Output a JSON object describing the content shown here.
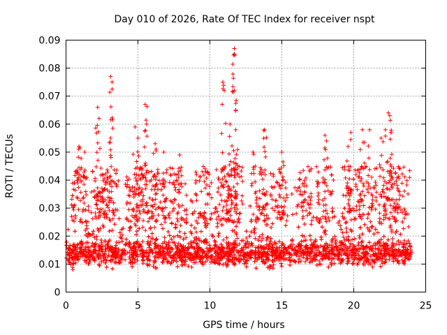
{
  "chart_data": {
    "type": "scatter",
    "title": "Day 010 of 2026, Rate Of TEC Index for receiver nspt",
    "xlabel": "GPS time / hours",
    "ylabel": "ROTI / TECUs",
    "xlim": [
      0,
      25
    ],
    "ylim": [
      0,
      0.09
    ],
    "xticks": [
      "0",
      "5",
      "10",
      "15",
      "20",
      "25"
    ],
    "yticks": [
      "0",
      "0.01",
      "0.02",
      "0.03",
      "0.04",
      "0.05",
      "0.06",
      "0.07",
      "0.08",
      "0.09"
    ],
    "grid": true,
    "marker": "+",
    "color": "#ff0000",
    "series": [
      {
        "name": "ROTI",
        "x_range": [
          0,
          24
        ],
        "base_level": 0.014,
        "dense_band": [
          0.005,
          0.025
        ],
        "peaks": [
          {
            "x": 0.9,
            "y": 0.052
          },
          {
            "x": 1.3,
            "y": 0.05
          },
          {
            "x": 2.2,
            "y": 0.066
          },
          {
            "x": 2.3,
            "y": 0.062
          },
          {
            "x": 3.1,
            "y": 0.077
          },
          {
            "x": 3.2,
            "y": 0.075
          },
          {
            "x": 3.1,
            "y": 0.055
          },
          {
            "x": 4.8,
            "y": 0.059
          },
          {
            "x": 5.0,
            "y": 0.055
          },
          {
            "x": 5.5,
            "y": 0.067
          },
          {
            "x": 5.6,
            "y": 0.06
          },
          {
            "x": 6.2,
            "y": 0.053
          },
          {
            "x": 6.8,
            "y": 0.05
          },
          {
            "x": 7.9,
            "y": 0.049
          },
          {
            "x": 10.9,
            "y": 0.075
          },
          {
            "x": 11.0,
            "y": 0.072
          },
          {
            "x": 11.4,
            "y": 0.06
          },
          {
            "x": 11.7,
            "y": 0.087
          },
          {
            "x": 11.7,
            "y": 0.085
          },
          {
            "x": 11.7,
            "y": 0.072
          },
          {
            "x": 11.8,
            "y": 0.065
          },
          {
            "x": 11.8,
            "y": 0.058
          },
          {
            "x": 13.0,
            "y": 0.05
          },
          {
            "x": 13.8,
            "y": 0.058
          },
          {
            "x": 15.0,
            "y": 0.05
          },
          {
            "x": 18.0,
            "y": 0.056
          },
          {
            "x": 18.1,
            "y": 0.054
          },
          {
            "x": 19.6,
            "y": 0.052
          },
          {
            "x": 19.8,
            "y": 0.057
          },
          {
            "x": 20.6,
            "y": 0.058
          },
          {
            "x": 21.1,
            "y": 0.058
          },
          {
            "x": 21.9,
            "y": 0.055
          },
          {
            "x": 22.2,
            "y": 0.058
          },
          {
            "x": 22.4,
            "y": 0.064
          },
          {
            "x": 22.5,
            "y": 0.063
          },
          {
            "x": 22.6,
            "y": 0.057
          }
        ]
      }
    ]
  }
}
